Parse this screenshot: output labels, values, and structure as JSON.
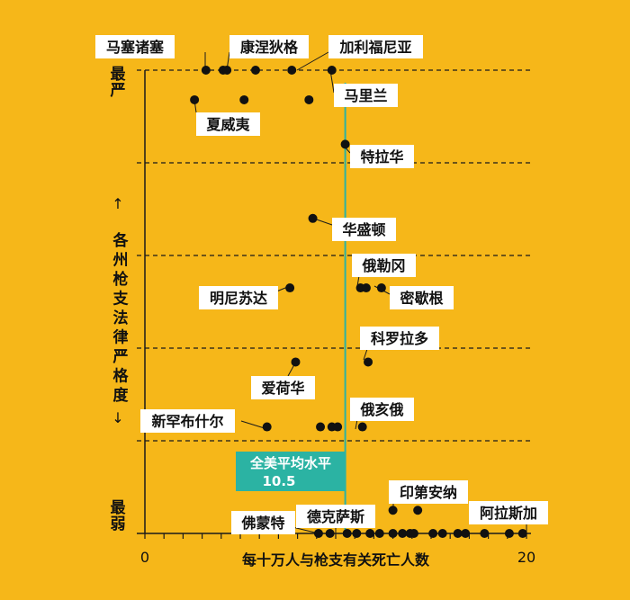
{
  "chart_data": {
    "type": "scatter",
    "title": "",
    "xlabel": "每十万人与枪支有关死亡人数",
    "ylabel": "各州枪支法律严格度",
    "ylabel_arrow_up": "↑",
    "ylabel_arrow_down": "↓",
    "y_top_label": "最严",
    "y_bottom_label": "最弱",
    "xlim": [
      0,
      20
    ],
    "x_ticks": [
      "0",
      "20"
    ],
    "average": {
      "label": "全美平均水平",
      "value_text": "10.5",
      "value": 10.5
    },
    "tiers": 6,
    "points": [
      {
        "x": 3.2,
        "tier": 1
      },
      {
        "x": 4.1,
        "tier": 1
      },
      {
        "x": 4.3,
        "tier": 1
      },
      {
        "x": 5.8,
        "tier": 1
      },
      {
        "x": 7.7,
        "tier": 1
      },
      {
        "x": 9.8,
        "tier": 1
      },
      {
        "x": 2.6,
        "tier": 1.32
      },
      {
        "x": 5.2,
        "tier": 1.32
      },
      {
        "x": 8.6,
        "tier": 1.32
      },
      {
        "x": 10.5,
        "tier": 1.8
      },
      {
        "x": 8.8,
        "tier": 2.6
      },
      {
        "x": 7.6,
        "tier": 3.35
      },
      {
        "x": 11.3,
        "tier": 3.35
      },
      {
        "x": 11.6,
        "tier": 3.35
      },
      {
        "x": 12.4,
        "tier": 3.35
      },
      {
        "x": 7.9,
        "tier": 4.15
      },
      {
        "x": 11.7,
        "tier": 4.15
      },
      {
        "x": 6.4,
        "tier": 4.85
      },
      {
        "x": 9.2,
        "tier": 4.85
      },
      {
        "x": 9.8,
        "tier": 4.85
      },
      {
        "x": 10.1,
        "tier": 4.85
      },
      {
        "x": 11.4,
        "tier": 4.85
      },
      {
        "x": 13.0,
        "tier": 5.75
      },
      {
        "x": 14.3,
        "tier": 5.75
      },
      {
        "x": 9.1,
        "tier": 6
      },
      {
        "x": 9.7,
        "tier": 6
      },
      {
        "x": 10.6,
        "tier": 6
      },
      {
        "x": 11.1,
        "tier": 6
      },
      {
        "x": 11.8,
        "tier": 6
      },
      {
        "x": 12.3,
        "tier": 6
      },
      {
        "x": 13.0,
        "tier": 6
      },
      {
        "x": 13.5,
        "tier": 6
      },
      {
        "x": 13.9,
        "tier": 6
      },
      {
        "x": 14.1,
        "tier": 6
      },
      {
        "x": 15.1,
        "tier": 6
      },
      {
        "x": 15.6,
        "tier": 6
      },
      {
        "x": 16.4,
        "tier": 6
      },
      {
        "x": 16.8,
        "tier": 6
      },
      {
        "x": 17.8,
        "tier": 6
      },
      {
        "x": 19.1,
        "tier": 6
      },
      {
        "x": 19.8,
        "tier": 6
      }
    ],
    "annotations": [
      {
        "text": "马塞诸塞",
        "x": 3.2,
        "tier": 1
      },
      {
        "text": "康涅狄格",
        "x": 4.3,
        "tier": 1
      },
      {
        "text": "加利福尼亚",
        "x": 7.7,
        "tier": 1
      },
      {
        "text": "夏威夷",
        "x": 2.6,
        "tier": 1.32
      },
      {
        "text": "马里兰",
        "x": 9.8,
        "tier": 1
      },
      {
        "text": "特拉华",
        "x": 10.5,
        "tier": 1.8
      },
      {
        "text": "华盛顿",
        "x": 8.8,
        "tier": 2.6
      },
      {
        "text": "俄勒冈",
        "x": 11.6,
        "tier": 3.35
      },
      {
        "text": "明尼苏达",
        "x": 7.6,
        "tier": 3.35
      },
      {
        "text": "密歇根",
        "x": 12.4,
        "tier": 3.35
      },
      {
        "text": "科罗拉多",
        "x": 11.7,
        "tier": 4.15
      },
      {
        "text": "爱荷华",
        "x": 7.9,
        "tier": 4.15
      },
      {
        "text": "新罕布什尔",
        "x": 6.4,
        "tier": 4.85
      },
      {
        "text": "俄亥俄",
        "x": 11.4,
        "tier": 4.85
      },
      {
        "text": "印第安纳",
        "x": 13.0,
        "tier": 5.75
      },
      {
        "text": "阿拉斯加",
        "x": 19.8,
        "tier": 6
      },
      {
        "text": "佛蒙特",
        "x": 9.1,
        "tier": 6
      },
      {
        "text": "德克萨斯",
        "x": 9.7,
        "tier": 6
      }
    ]
  }
}
